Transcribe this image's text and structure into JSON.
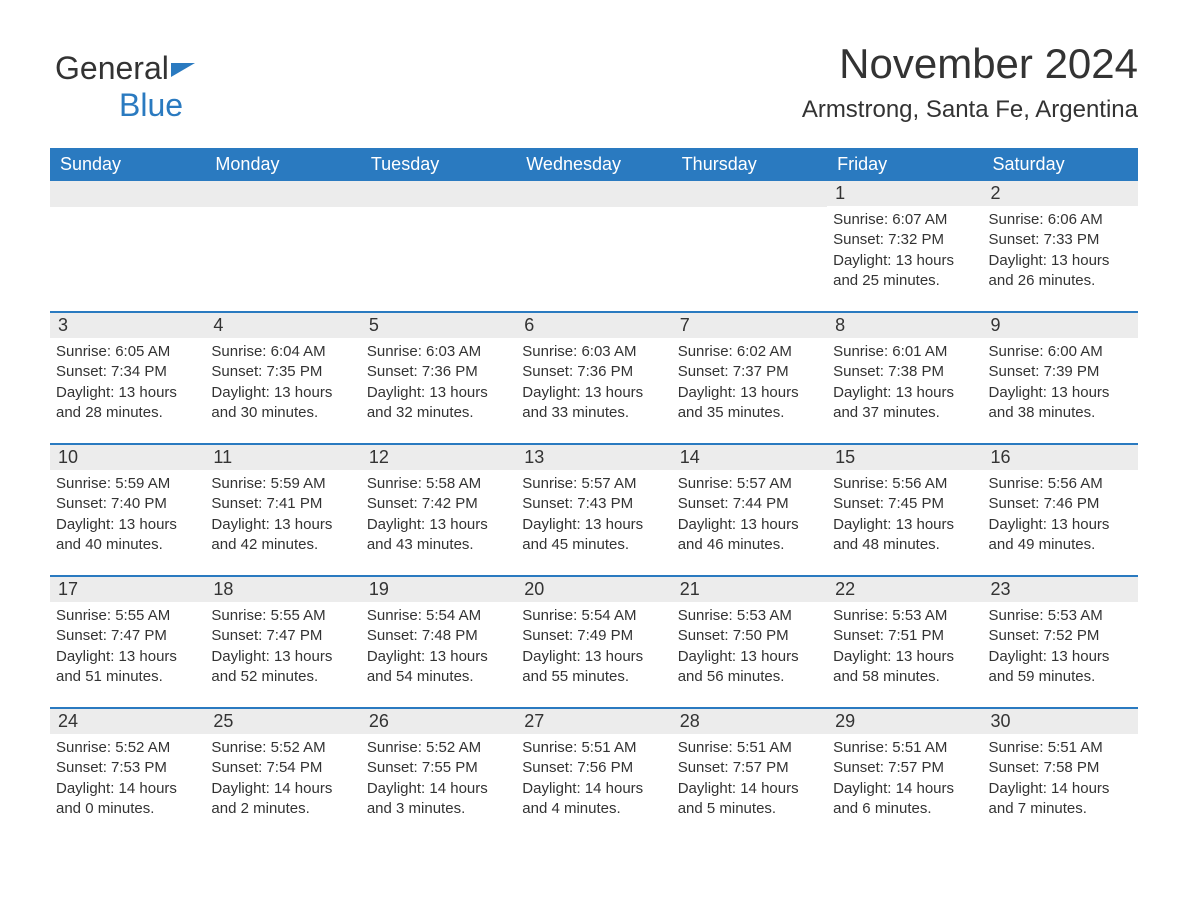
{
  "brand": {
    "part1": "General",
    "part2": "Blue"
  },
  "title": "November 2024",
  "subtitle": "Armstrong, Santa Fe, Argentina",
  "colors": {
    "accent": "#2a7ac0",
    "daynum_bg": "#ececec",
    "text": "#333333",
    "background": "#ffffff"
  },
  "weekdays": [
    "Sunday",
    "Monday",
    "Tuesday",
    "Wednesday",
    "Thursday",
    "Friday",
    "Saturday"
  ],
  "weeks": [
    [
      {
        "blank": true
      },
      {
        "blank": true
      },
      {
        "blank": true
      },
      {
        "blank": true
      },
      {
        "blank": true
      },
      {
        "day": "1",
        "sunrise": "6:07 AM",
        "sunset": "7:32 PM",
        "daylight": "13 hours and 25 minutes."
      },
      {
        "day": "2",
        "sunrise": "6:06 AM",
        "sunset": "7:33 PM",
        "daylight": "13 hours and 26 minutes."
      }
    ],
    [
      {
        "day": "3",
        "sunrise": "6:05 AM",
        "sunset": "7:34 PM",
        "daylight": "13 hours and 28 minutes."
      },
      {
        "day": "4",
        "sunrise": "6:04 AM",
        "sunset": "7:35 PM",
        "daylight": "13 hours and 30 minutes."
      },
      {
        "day": "5",
        "sunrise": "6:03 AM",
        "sunset": "7:36 PM",
        "daylight": "13 hours and 32 minutes."
      },
      {
        "day": "6",
        "sunrise": "6:03 AM",
        "sunset": "7:36 PM",
        "daylight": "13 hours and 33 minutes."
      },
      {
        "day": "7",
        "sunrise": "6:02 AM",
        "sunset": "7:37 PM",
        "daylight": "13 hours and 35 minutes."
      },
      {
        "day": "8",
        "sunrise": "6:01 AM",
        "sunset": "7:38 PM",
        "daylight": "13 hours and 37 minutes."
      },
      {
        "day": "9",
        "sunrise": "6:00 AM",
        "sunset": "7:39 PM",
        "daylight": "13 hours and 38 minutes."
      }
    ],
    [
      {
        "day": "10",
        "sunrise": "5:59 AM",
        "sunset": "7:40 PM",
        "daylight": "13 hours and 40 minutes."
      },
      {
        "day": "11",
        "sunrise": "5:59 AM",
        "sunset": "7:41 PM",
        "daylight": "13 hours and 42 minutes."
      },
      {
        "day": "12",
        "sunrise": "5:58 AM",
        "sunset": "7:42 PM",
        "daylight": "13 hours and 43 minutes."
      },
      {
        "day": "13",
        "sunrise": "5:57 AM",
        "sunset": "7:43 PM",
        "daylight": "13 hours and 45 minutes."
      },
      {
        "day": "14",
        "sunrise": "5:57 AM",
        "sunset": "7:44 PM",
        "daylight": "13 hours and 46 minutes."
      },
      {
        "day": "15",
        "sunrise": "5:56 AM",
        "sunset": "7:45 PM",
        "daylight": "13 hours and 48 minutes."
      },
      {
        "day": "16",
        "sunrise": "5:56 AM",
        "sunset": "7:46 PM",
        "daylight": "13 hours and 49 minutes."
      }
    ],
    [
      {
        "day": "17",
        "sunrise": "5:55 AM",
        "sunset": "7:47 PM",
        "daylight": "13 hours and 51 minutes."
      },
      {
        "day": "18",
        "sunrise": "5:55 AM",
        "sunset": "7:47 PM",
        "daylight": "13 hours and 52 minutes."
      },
      {
        "day": "19",
        "sunrise": "5:54 AM",
        "sunset": "7:48 PM",
        "daylight": "13 hours and 54 minutes."
      },
      {
        "day": "20",
        "sunrise": "5:54 AM",
        "sunset": "7:49 PM",
        "daylight": "13 hours and 55 minutes."
      },
      {
        "day": "21",
        "sunrise": "5:53 AM",
        "sunset": "7:50 PM",
        "daylight": "13 hours and 56 minutes."
      },
      {
        "day": "22",
        "sunrise": "5:53 AM",
        "sunset": "7:51 PM",
        "daylight": "13 hours and 58 minutes."
      },
      {
        "day": "23",
        "sunrise": "5:53 AM",
        "sunset": "7:52 PM",
        "daylight": "13 hours and 59 minutes."
      }
    ],
    [
      {
        "day": "24",
        "sunrise": "5:52 AM",
        "sunset": "7:53 PM",
        "daylight": "14 hours and 0 minutes."
      },
      {
        "day": "25",
        "sunrise": "5:52 AM",
        "sunset": "7:54 PM",
        "daylight": "14 hours and 2 minutes."
      },
      {
        "day": "26",
        "sunrise": "5:52 AM",
        "sunset": "7:55 PM",
        "daylight": "14 hours and 3 minutes."
      },
      {
        "day": "27",
        "sunrise": "5:51 AM",
        "sunset": "7:56 PM",
        "daylight": "14 hours and 4 minutes."
      },
      {
        "day": "28",
        "sunrise": "5:51 AM",
        "sunset": "7:57 PM",
        "daylight": "14 hours and 5 minutes."
      },
      {
        "day": "29",
        "sunrise": "5:51 AM",
        "sunset": "7:57 PM",
        "daylight": "14 hours and 6 minutes."
      },
      {
        "day": "30",
        "sunrise": "5:51 AM",
        "sunset": "7:58 PM",
        "daylight": "14 hours and 7 minutes."
      }
    ]
  ],
  "labels": {
    "sunrise": "Sunrise: ",
    "sunset": "Sunset: ",
    "daylight": "Daylight: "
  }
}
